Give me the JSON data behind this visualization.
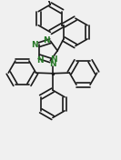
{
  "bg_color": "#f0f0f0",
  "line_color": "#1a1a1a",
  "lw": 1.2,
  "dbo": 0.018,
  "N_color": "#2a7a2a",
  "fs": 6.5,
  "xlim": [
    0.0,
    1.0
  ],
  "ylim": [
    0.0,
    1.32
  ]
}
